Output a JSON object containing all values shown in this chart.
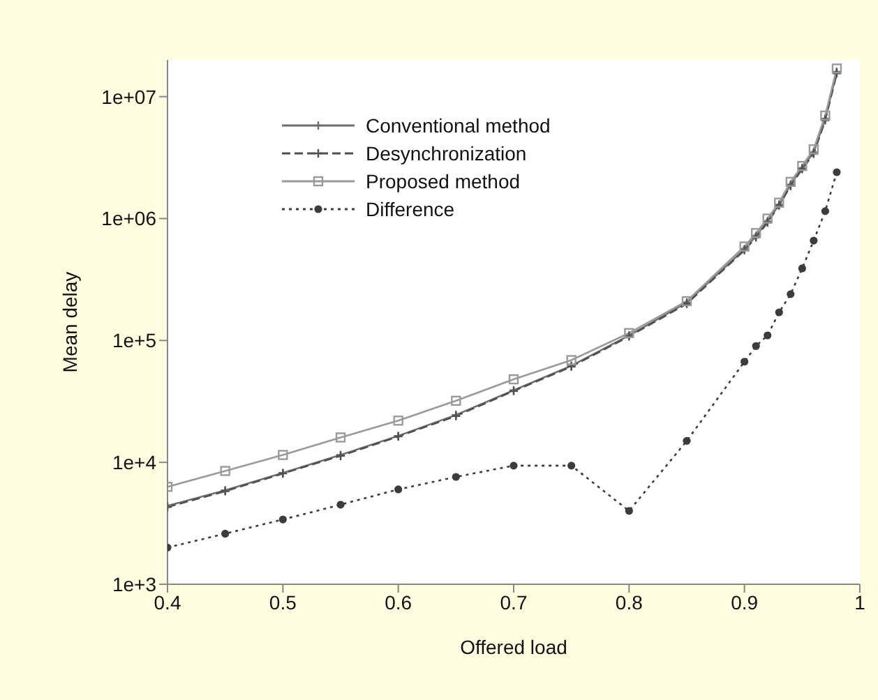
{
  "chart_data": {
    "type": "line",
    "xlabel": "Offered load",
    "ylabel": "Mean delay",
    "x": [
      0.4,
      0.45,
      0.5,
      0.55,
      0.6,
      0.65,
      0.7,
      0.75,
      0.8,
      0.85,
      0.9,
      0.91,
      0.92,
      0.93,
      0.94,
      0.95,
      0.96,
      0.97,
      0.98
    ],
    "series": [
      {
        "name": "Conventional method",
        "color": "#6e6e6e",
        "marker": "cross",
        "line_style": "solid",
        "values": [
          4400,
          5900,
          8200,
          11500,
          16500,
          24500,
          39000,
          62000,
          110000,
          205000,
          560000,
          720000,
          950000,
          1300000,
          1900000,
          2600000,
          3500000,
          6600000,
          16000000
        ]
      },
      {
        "name": "Desynchronization",
        "color": "#505050",
        "marker": "cross",
        "line_style": "dashed",
        "values": [
          4300,
          5800,
          8100,
          11300,
          16300,
          24000,
          38500,
          61000,
          108000,
          200000,
          550000,
          700000,
          930000,
          1280000,
          1850000,
          2550000,
          3400000,
          6400000,
          15500000
        ]
      },
      {
        "name": "Proposed method",
        "color": "#9a9a9a",
        "marker": "square",
        "line_style": "solid",
        "values": [
          6300,
          8500,
          11500,
          16000,
          22000,
          32000,
          48000,
          69000,
          115000,
          210000,
          590000,
          760000,
          1000000,
          1350000,
          2000000,
          2700000,
          3700000,
          7000000,
          17000000
        ]
      },
      {
        "name": "Difference",
        "color": "#3c3c3c",
        "marker": "circle",
        "line_style": "dotted",
        "values": [
          2000,
          2600,
          3400,
          4500,
          6000,
          7600,
          9400,
          9400,
          4000,
          15000,
          67000,
          90000,
          110000,
          170000,
          240000,
          390000,
          660000,
          1150000,
          2400000
        ]
      }
    ],
    "xlim": [
      0.4,
      1
    ],
    "xticks": [
      0.4,
      0.5,
      0.6,
      0.7,
      0.8,
      0.9,
      1
    ],
    "ylim": [
      1000,
      20000000
    ],
    "log": "y",
    "yticks": [
      {
        "value": 1000,
        "label": "1e+3"
      },
      {
        "value": 10000,
        "label": "1e+4"
      },
      {
        "value": 100000,
        "label": "1e+5"
      },
      {
        "value": 1000000,
        "label": "1e+06"
      },
      {
        "value": 10000000,
        "label": "1e+07"
      }
    ],
    "legend": "top left"
  }
}
